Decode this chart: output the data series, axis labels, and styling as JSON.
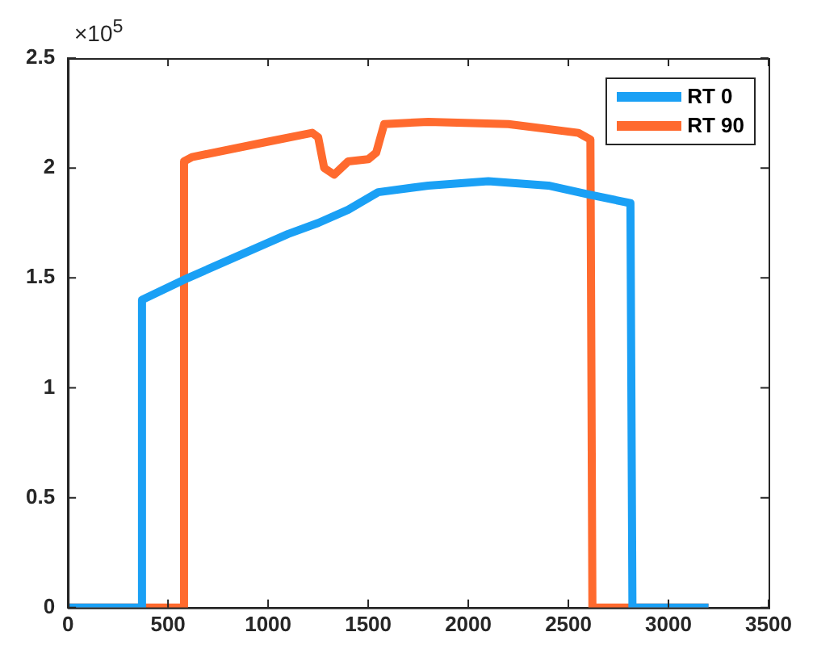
{
  "chart_data": {
    "type": "line",
    "annotations": [
      "×10$^{5}$"
    ],
    "xlim": [
      0,
      3500
    ],
    "xticks": [
      0,
      500,
      1000,
      1500,
      2000,
      2500,
      3000,
      3500
    ],
    "ylim": [
      0,
      2.5
    ],
    "yticks": [
      0,
      0.5,
      1,
      1.5,
      2,
      2.5
    ],
    "grid": false,
    "legend": "top right",
    "marker": "none",
    "line_style": "solid",
    "series": [
      {
        "name": "RT 0",
        "color": "#1aa0f5",
        "x": [
          0,
          365,
          370,
          600,
          1100,
          1250,
          1400,
          1550,
          1800,
          2100,
          2400,
          2600,
          2810,
          2820,
          3200
        ],
        "values": [
          0,
          0,
          1.4,
          1.5,
          1.7,
          1.75,
          1.81,
          1.89,
          1.92,
          1.94,
          1.92,
          1.88,
          1.84,
          0,
          0
        ]
      },
      {
        "name": "RT 90",
        "color": "#ff6a2e",
        "x": [
          0,
          575,
          580,
          620,
          1000,
          1220,
          1250,
          1280,
          1330,
          1400,
          1500,
          1540,
          1580,
          1800,
          2200,
          2550,
          2610,
          2620,
          3200
        ],
        "values": [
          0,
          0,
          2.03,
          2.05,
          2.12,
          2.16,
          2.14,
          2.0,
          1.97,
          2.03,
          2.04,
          2.07,
          2.2,
          2.21,
          2.2,
          2.16,
          2.13,
          0,
          0
        ]
      }
    ]
  }
}
